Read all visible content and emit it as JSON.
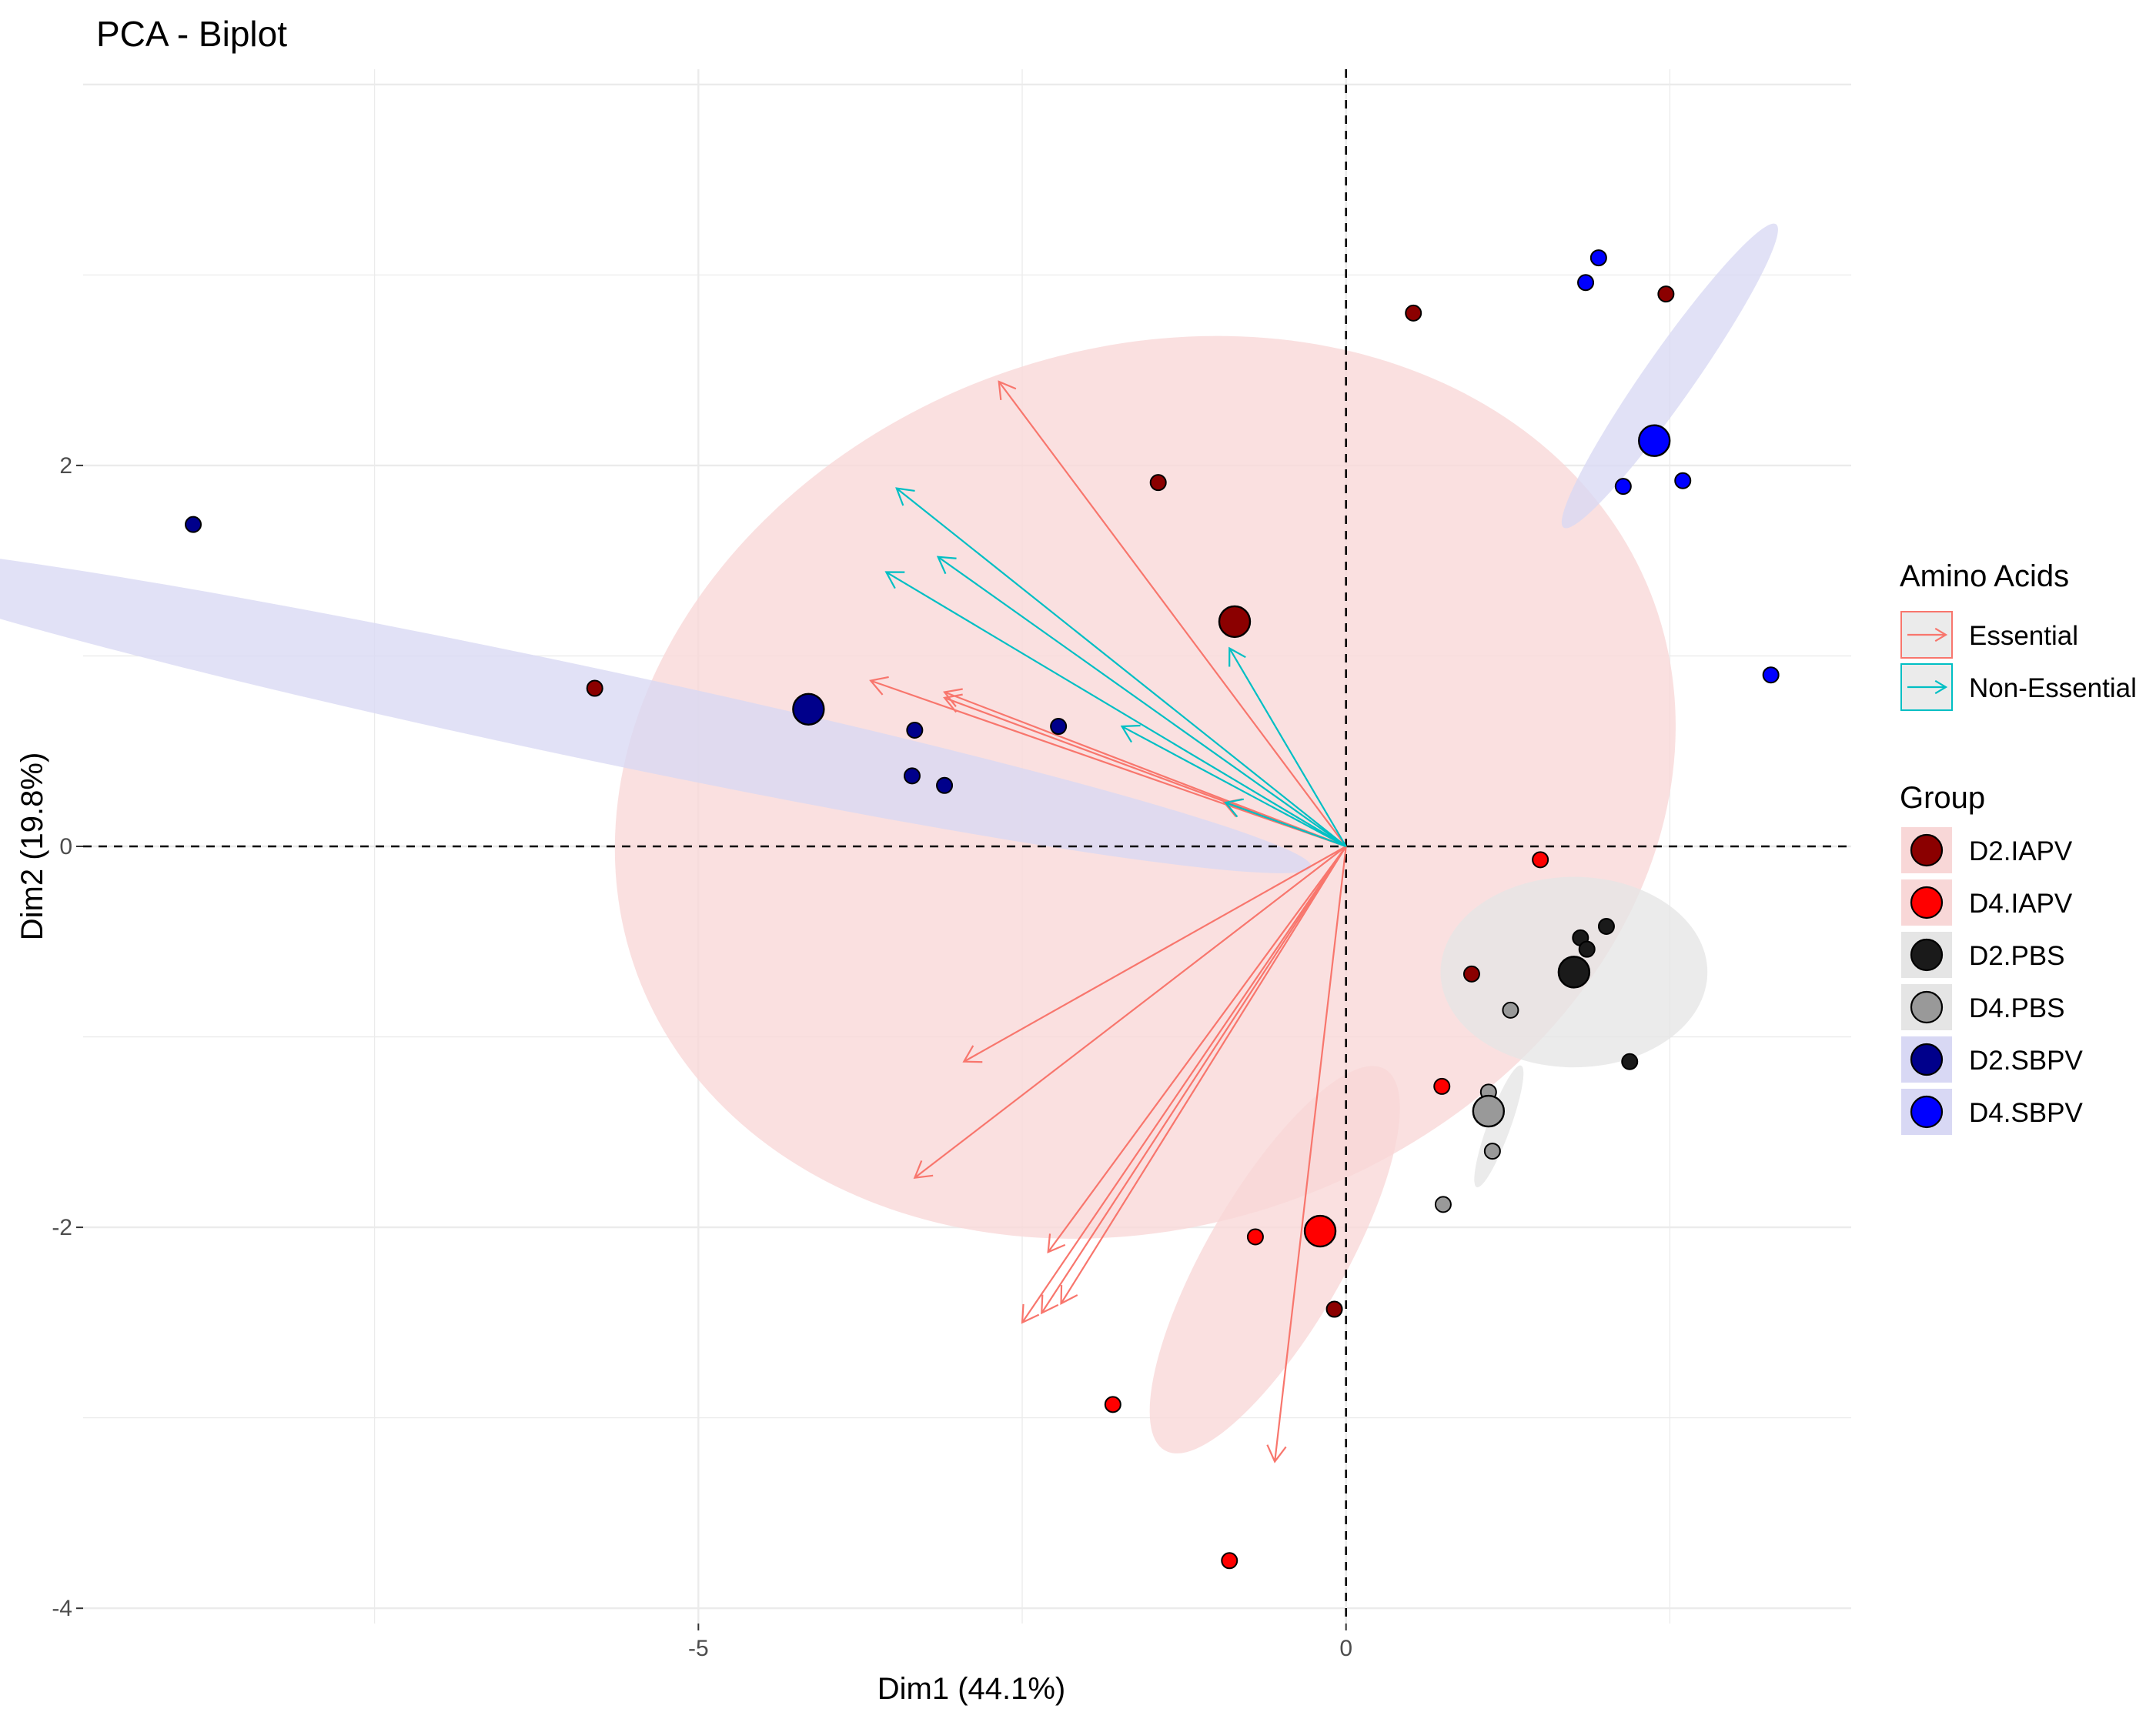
{
  "chart_data": {
    "type": "scatter",
    "title": "PCA - Biplot",
    "xlabel": "Dim1 (44.1%)",
    "ylabel": "Dim2 (19.8%)",
    "xlim": [
      -9.75,
      3.9
    ],
    "ylim": [
      -4.08,
      4.08
    ],
    "x_ticks": [
      -5,
      0
    ],
    "x_tick_labels": [
      "-5",
      "0"
    ],
    "y_ticks": [
      2,
      0,
      -2,
      -4
    ],
    "y_tick_labels": [
      "2",
      "0",
      "-2",
      "-4"
    ],
    "reference_lines": {
      "x": 0,
      "y": 0,
      "style": "dashed"
    },
    "grid": true,
    "legends": {
      "arrows": {
        "title": "Amino Acids",
        "entries": [
          {
            "label": "Essential",
            "color": "#F8766D"
          },
          {
            "label": "Non-Essential",
            "color": "#00BFC4"
          }
        ]
      },
      "groups": {
        "title": "Group",
        "entries": [
          {
            "label": "D2.IAPV",
            "color": "#8B0000"
          },
          {
            "label": "D4.IAPV",
            "color": "#FF0000"
          },
          {
            "label": "D2.PBS",
            "color": "#1A1A1A"
          },
          {
            "label": "D4.PBS",
            "color": "#999999"
          },
          {
            "label": "D2.SBPV",
            "color": "#00008B"
          },
          {
            "label": "D4.SBPV",
            "color": "#0000FF"
          }
        ]
      }
    },
    "ellipses": [
      {
        "group": "D2.IAPV",
        "cx": -1.55,
        "cy": 0.31,
        "rx": 4.18,
        "ry": 2.3,
        "angle_deg": -20,
        "color": "#F8D7D7"
      },
      {
        "group": "D4.IAPV",
        "cx": -0.55,
        "cy": -2.17,
        "rx": 1.7,
        "ry": 0.36,
        "angle_deg": -60,
        "color": "#F8D7D7"
      },
      {
        "group": "D2.SBPV",
        "cx": -6.0,
        "cy": 0.72,
        "rx": 5.86,
        "ry": 0.24,
        "angle_deg": 12,
        "color": "#D8D8F4"
      },
      {
        "group": "D4.SBPV",
        "cx": 2.5,
        "cy": 2.47,
        "rx": 1.43,
        "ry": 0.13,
        "angle_deg": -55,
        "color": "#D8D8F4"
      },
      {
        "group": "D2.PBS",
        "cx": 1.76,
        "cy": -0.66,
        "rx": 1.03,
        "ry": 0.5,
        "angle_deg": 0,
        "color": "#E5E5E5"
      },
      {
        "group": "D4.PBS",
        "cx": 1.18,
        "cy": -1.47,
        "rx": 0.5,
        "ry": 0.06,
        "angle_deg": -70,
        "color": "#E5E5E5"
      }
    ],
    "arrows": [
      {
        "type": "Essential",
        "x": -2.68,
        "y": 2.44
      },
      {
        "type": "Essential",
        "x": -3.67,
        "y": 0.87
      },
      {
        "type": "Essential",
        "x": -3.1,
        "y": 0.81
      },
      {
        "type": "Essential",
        "x": -3.1,
        "y": 0.78
      },
      {
        "type": "Essential",
        "x": -0.94,
        "y": 0.23
      },
      {
        "type": "Essential",
        "x": -2.95,
        "y": -1.13
      },
      {
        "type": "Essential",
        "x": -3.33,
        "y": -1.74
      },
      {
        "type": "Essential",
        "x": -2.3,
        "y": -2.13
      },
      {
        "type": "Essential",
        "x": -2.5,
        "y": -2.5
      },
      {
        "type": "Essential",
        "x": -2.35,
        "y": -2.45
      },
      {
        "type": "Essential",
        "x": -2.2,
        "y": -2.4
      },
      {
        "type": "Essential",
        "x": -0.55,
        "y": -3.23
      },
      {
        "type": "Non-Essential",
        "x": -3.47,
        "y": 1.88
      },
      {
        "type": "Non-Essential",
        "x": -3.55,
        "y": 1.44
      },
      {
        "type": "Non-Essential",
        "x": -3.15,
        "y": 1.52
      },
      {
        "type": "Non-Essential",
        "x": -1.73,
        "y": 0.63
      },
      {
        "type": "Non-Essential",
        "x": -0.9,
        "y": 1.04
      },
      {
        "type": "Non-Essential",
        "x": -0.93,
        "y": 0.23
      }
    ],
    "points": [
      {
        "group": "D2.IAPV",
        "x": -5.8,
        "y": 0.83
      },
      {
        "group": "D2.IAPV",
        "x": -1.45,
        "y": 1.91
      },
      {
        "group": "D2.IAPV",
        "x": 0.52,
        "y": 2.8
      },
      {
        "group": "D2.IAPV",
        "x": 2.47,
        "y": 2.9
      },
      {
        "group": "D2.IAPV",
        "x": 0.97,
        "y": -0.67
      },
      {
        "group": "D2.IAPV",
        "x": -0.09,
        "y": -2.43
      },
      {
        "group": "D4.IAPV",
        "x": 1.5,
        "y": -0.07
      },
      {
        "group": "D4.IAPV",
        "x": 0.74,
        "y": -1.26
      },
      {
        "group": "D4.IAPV",
        "x": -0.7,
        "y": -2.05
      },
      {
        "group": "D4.IAPV",
        "x": -1.8,
        "y": -2.93
      },
      {
        "group": "D4.IAPV",
        "x": -0.9,
        "y": -3.75
      },
      {
        "group": "D2.PBS",
        "x": 1.81,
        "y": -0.48
      },
      {
        "group": "D2.PBS",
        "x": 2.01,
        "y": -0.42
      },
      {
        "group": "D2.PBS",
        "x": 1.86,
        "y": -0.54
      },
      {
        "group": "D2.PBS",
        "x": 2.19,
        "y": -1.13
      },
      {
        "group": "D4.PBS",
        "x": 1.27,
        "y": -0.86
      },
      {
        "group": "D4.PBS",
        "x": 1.1,
        "y": -1.29
      },
      {
        "group": "D4.PBS",
        "x": 1.13,
        "y": -1.6
      },
      {
        "group": "D4.PBS",
        "x": 0.75,
        "y": -1.88
      },
      {
        "group": "D2.SBPV",
        "x": -8.9,
        "y": 1.69
      },
      {
        "group": "D2.SBPV",
        "x": -3.33,
        "y": 0.61
      },
      {
        "group": "D2.SBPV",
        "x": -3.35,
        "y": 0.37
      },
      {
        "group": "D2.SBPV",
        "x": -3.1,
        "y": 0.32
      },
      {
        "group": "D2.SBPV",
        "x": -2.22,
        "y": 0.63
      },
      {
        "group": "D4.SBPV",
        "x": 1.95,
        "y": 3.09
      },
      {
        "group": "D4.SBPV",
        "x": 1.85,
        "y": 2.96
      },
      {
        "group": "D4.SBPV",
        "x": 2.14,
        "y": 1.89
      },
      {
        "group": "D4.SBPV",
        "x": 2.6,
        "y": 1.92
      },
      {
        "group": "D4.SBPV",
        "x": 3.28,
        "y": 0.9
      }
    ],
    "centroids": [
      {
        "group": "D2.IAPV",
        "x": -0.86,
        "y": 1.18
      },
      {
        "group": "D4.IAPV",
        "x": -0.2,
        "y": -2.02
      },
      {
        "group": "D2.PBS",
        "x": 1.76,
        "y": -0.66
      },
      {
        "group": "D4.PBS",
        "x": 1.1,
        "y": -1.39
      },
      {
        "group": "D2.SBPV",
        "x": -4.15,
        "y": 0.72
      },
      {
        "group": "D4.SBPV",
        "x": 2.38,
        "y": 2.13
      }
    ]
  }
}
